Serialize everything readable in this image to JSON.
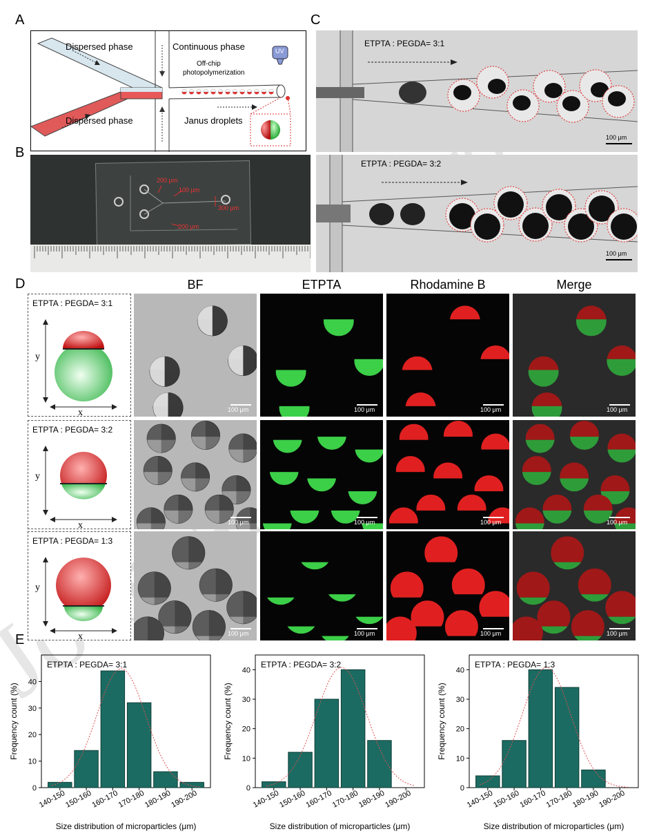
{
  "panels": {
    "A": "A",
    "B": "B",
    "C": "C",
    "D": "D",
    "E": "E"
  },
  "panelA": {
    "dispersed_top": "Dispersed phase",
    "dispersed_bottom": "Dispersed phase",
    "continuous": "Continuous phase",
    "offchip": "Off-chip",
    "photopoly": "photopolymerization",
    "uv": "UV",
    "janus": "Janus droplets"
  },
  "panelB": {
    "dim1": "200 μm",
    "dim2": "100 μm",
    "dim3": "300 μm",
    "dim4": "200 μm"
  },
  "panelC": {
    "top_label": "ETPTA : PEGDA= 3:1",
    "bottom_label": "ETPTA : PEGDA= 3:2",
    "scale_top": "100 μm",
    "scale_bottom": "100 μm"
  },
  "panelD": {
    "columns": [
      "BF",
      "ETPTA",
      "Rhodamine B",
      "Merge"
    ],
    "rows": [
      {
        "ratio": "ETPTA : PEGDA= 3:1",
        "y": "y",
        "x": "x"
      },
      {
        "ratio": "ETPTA : PEGDA= 3:2",
        "y": "y",
        "x": "x"
      },
      {
        "ratio": "ETPTA : PEGDA= 1:3",
        "y": "y",
        "x": "x"
      }
    ],
    "scale": "100 μm"
  },
  "colors": {
    "green": "#3ccf48",
    "red": "#e02020",
    "bar_fill": "#1c6b62",
    "bar_stroke": "#0d3d37",
    "fit": "#e05050"
  },
  "chart_data": [
    {
      "type": "bar",
      "title": "ETPTA : PEGDA= 3:1",
      "xlabel": "Size distribution of microparticles (μm)",
      "ylabel": "Frequency count (%)",
      "categories": [
        "140-150",
        "150-160",
        "160-170",
        "170-180",
        "180-190",
        "190-200"
      ],
      "values": [
        2,
        14,
        44,
        32,
        6,
        2
      ],
      "ylim": [
        0,
        50
      ],
      "yticks": [
        0,
        10,
        20,
        30,
        40
      ]
    },
    {
      "type": "bar",
      "title": "ETPTA : PEGDA= 3:2",
      "xlabel": "Size distribution of microparticles (μm)",
      "ylabel": "Frequency count (%)",
      "categories": [
        "140-150",
        "150-160",
        "160-170",
        "170-180",
        "180-190",
        "190-200"
      ],
      "values": [
        2,
        12,
        30,
        40,
        16,
        0
      ],
      "ylim": [
        0,
        45
      ],
      "yticks": [
        0,
        10,
        20,
        30,
        40
      ]
    },
    {
      "type": "bar",
      "title": "ETPTA : PEGDA= 1:3",
      "xlabel": "Size distribution of microparticles (μm)",
      "ylabel": "Frequency count (%)",
      "categories": [
        "140-150",
        "150-160",
        "160-170",
        "170-180",
        "180-190",
        "190-200"
      ],
      "values": [
        4,
        16,
        40,
        34,
        6,
        0
      ],
      "ylim": [
        0,
        45
      ],
      "yticks": [
        0,
        10,
        20,
        30,
        40
      ]
    }
  ]
}
